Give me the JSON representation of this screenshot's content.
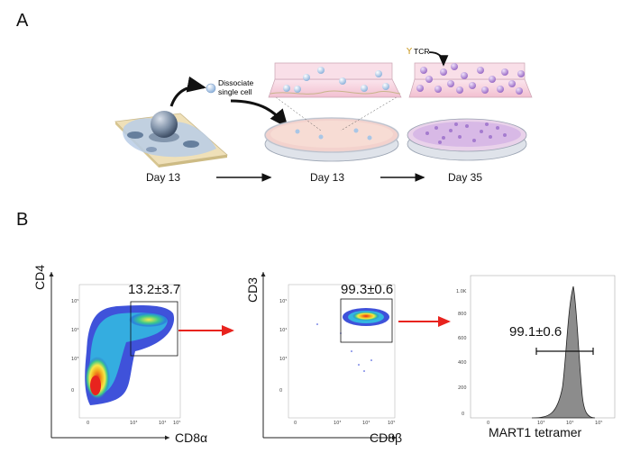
{
  "panels": {
    "a": {
      "letter": "A"
    },
    "b": {
      "letter": "B"
    }
  },
  "panel_a": {
    "days": [
      "Day 13",
      "Day 13",
      "Day 35"
    ],
    "dissociate_label": [
      "Dissociate",
      "single cell"
    ],
    "tcr_label": "TCR",
    "colors": {
      "cell_blue": "#a9c6e6",
      "cell_purple": "#b48fd4",
      "dish_pink": "#f2c7c7",
      "box_pink": "#f7d4df"
    }
  },
  "panel_b": {
    "plot1": {
      "x_label": "CD8α",
      "y_label": "CD4",
      "gate_value": "13.2±3.7",
      "x_ticks": [
        "0",
        "10³",
        "10⁴",
        "10⁵"
      ],
      "y_ticks": [
        "0",
        "10³",
        "10⁴",
        "10⁵"
      ]
    },
    "plot2": {
      "x_label": "CD8β",
      "y_label": "CD3",
      "gate_value": "99.3±0.6",
      "x_ticks": [
        "0",
        "10³",
        "10⁴",
        "10⁵"
      ],
      "y_ticks": [
        "0",
        "10³",
        "10⁴",
        "10⁵"
      ]
    },
    "plot3": {
      "x_label": "MART1 tetramer",
      "gate_value": "99.1±0.6",
      "x_ticks": [
        "0",
        "10³",
        "10⁴",
        "10⁵"
      ],
      "y_ticks": [
        "0",
        "200",
        "400",
        "600",
        "800",
        "1.0K"
      ]
    },
    "arrow_color": "#e8231e"
  }
}
